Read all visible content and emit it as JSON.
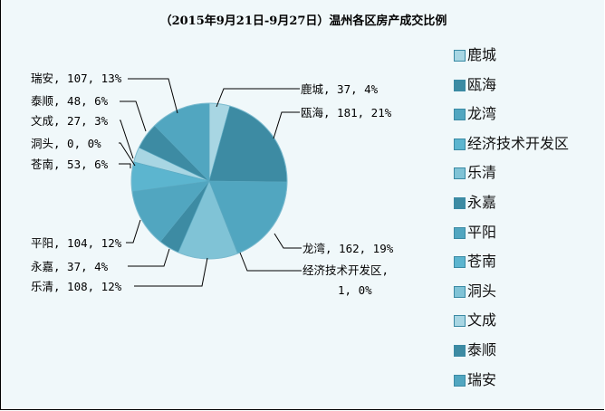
{
  "title": "（2015年9月21日-9月27日）温州各区房产成交比例",
  "chart_data": {
    "type": "pie",
    "title": "（2015年9月21日-9月27日）温州各区房产成交比例",
    "legend_position": "right",
    "start_angle": "12 o'clock, clockwise",
    "slices": [
      {
        "name": "鹿城",
        "value": 37,
        "percent": "4%",
        "color": "#a8d6e3",
        "label": "鹿城, 37, 4%"
      },
      {
        "name": "瓯海",
        "value": 181,
        "percent": "21%",
        "color": "#3d8ba3",
        "label": "瓯海, 181, 21%"
      },
      {
        "name": "龙湾",
        "value": 162,
        "percent": "19%",
        "color": "#51a6c0",
        "label": "龙湾, 162, 19%"
      },
      {
        "name": "经济技术开发区",
        "value": 1,
        "percent": "0%",
        "color": "#5cb5cf",
        "label": "经济技术开发区, 1, 0%"
      },
      {
        "name": "乐清",
        "value": 108,
        "percent": "12%",
        "color": "#80c3d6",
        "label": "乐清, 108, 12%"
      },
      {
        "name": "永嘉",
        "value": 37,
        "percent": "4%",
        "color": "#3d8ba3",
        "label": "永嘉, 37, 4%"
      },
      {
        "name": "平阳",
        "value": 104,
        "percent": "12%",
        "color": "#51a6c0",
        "label": "平阳, 104, 12%"
      },
      {
        "name": "苍南",
        "value": 53,
        "percent": "6%",
        "color": "#5cb5cf",
        "label": "苍南, 53, 6%"
      },
      {
        "name": "洞头",
        "value": 0,
        "percent": "0%",
        "color": "#80c3d6",
        "label": "洞头, 0, 0%"
      },
      {
        "name": "文成",
        "value": 27,
        "percent": "3%",
        "color": "#a8d6e3",
        "label": "文成, 27, 3%"
      },
      {
        "name": "泰顺",
        "value": 48,
        "percent": "6%",
        "color": "#3d8ba3",
        "label": "泰顺, 48, 6%"
      },
      {
        "name": "瑞安",
        "value": 107,
        "percent": "13%",
        "color": "#51a6c0",
        "label": "瑞安, 107, 13%"
      }
    ]
  },
  "labels": {
    "lucheng": "鹿城, 37, 4%",
    "ouhai": "瓯海, 181, 21%",
    "longwan": "龙湾, 162, 19%",
    "jingji_1": "经济技术开发区,",
    "jingji_2": "1, 0%",
    "yueqing": "乐清, 108, 12%",
    "yongjia": "永嘉, 37, 4%",
    "pingyang": "平阳, 104, 12%",
    "cangnan": "苍南, 53, 6%",
    "dongtou": "洞头, 0, 0%",
    "wencheng": "文成, 27, 3%",
    "taishun": "泰顺, 48, 6%",
    "ruian": "瑞安, 107, 13%"
  },
  "legend": [
    {
      "label": "鹿城",
      "color": "#a8d6e3"
    },
    {
      "label": "瓯海",
      "color": "#3d8ba3"
    },
    {
      "label": "龙湾",
      "color": "#51a6c0"
    },
    {
      "label": "经济技术开发区",
      "color": "#5cb5cf"
    },
    {
      "label": "乐清",
      "color": "#80c3d6"
    },
    {
      "label": "永嘉",
      "color": "#3d8ba3"
    },
    {
      "label": "平阳",
      "color": "#51a6c0"
    },
    {
      "label": "苍南",
      "color": "#5cb5cf"
    },
    {
      "label": "洞头",
      "color": "#80c3d6"
    },
    {
      "label": "文成",
      "color": "#a8d6e3"
    },
    {
      "label": "泰顺",
      "color": "#3d8ba3"
    },
    {
      "label": "瑞安",
      "color": "#51a6c0"
    }
  ]
}
